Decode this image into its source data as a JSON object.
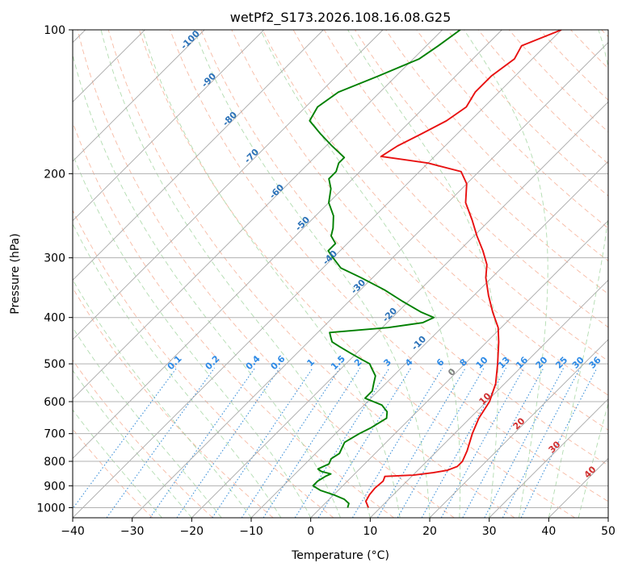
{
  "chart_data": {
    "type": "line",
    "diagram": "skew-t log-p",
    "title": "wetPf2_S173.2026.108.16.08.G25",
    "xlabel": "Temperature (°C)",
    "ylabel": "Pressure (hPa)",
    "xlim": [
      -40,
      50
    ],
    "ylim": [
      1050,
      100
    ],
    "y_scale": "log",
    "x_ticks": [
      "−40",
      "−30",
      "−20",
      "−10",
      "0",
      "10",
      "20",
      "30",
      "40",
      "50"
    ],
    "x_tick_values": [
      -40,
      -30,
      -20,
      -10,
      0,
      10,
      20,
      30,
      40,
      50
    ],
    "y_ticks": [
      "1000",
      "900",
      "800",
      "700",
      "600",
      "500",
      "400",
      "300",
      "200",
      "100"
    ],
    "y_tick_values": [
      1000,
      900,
      800,
      700,
      600,
      500,
      400,
      300,
      200,
      100
    ],
    "grid": true,
    "dry_adiabat_labels": [
      "-100",
      "-90",
      "-80",
      "-70",
      "-60",
      "-50",
      "-40",
      "-30",
      "-20",
      "-10"
    ],
    "moist_adiabat_labels": [
      "0",
      "10",
      "20",
      "30",
      "40"
    ],
    "mixing_ratio_labels": [
      "0.1",
      "0.2",
      "0.4",
      "0.6",
      "1",
      "1.5",
      "2",
      "3",
      "4",
      "6",
      "8",
      "10",
      "13",
      "16",
      "20",
      "25",
      "30",
      "36"
    ],
    "series": [
      {
        "color": "#e81010",
        "p": [
          1000,
          970,
          940,
          910,
          880,
          860,
          855,
          845,
          835,
          820,
          800,
          760,
          700,
          650,
          600,
          550,
          500,
          450,
          420,
          390,
          360,
          330,
          310,
          290,
          270,
          250,
          230,
          210,
          198,
          190,
          184,
          175,
          165,
          155,
          145,
          135,
          125,
          115,
          108,
          100
        ],
        "t": [
          8,
          6.5,
          6,
          5.8,
          6,
          5.5,
          10,
          13,
          15,
          16,
          16,
          15,
          13,
          11.5,
          10.5,
          8.5,
          5.5,
          2,
          -0.5,
          -4,
          -7.5,
          -11,
          -13,
          -16,
          -19.5,
          -23,
          -27,
          -30,
          -33,
          -40,
          -49,
          -48,
          -46,
          -44,
          -43,
          -44,
          -44,
          -43,
          -44,
          -40
        ]
      },
      {
        "color": "#008000",
        "p": [
          1000,
          980,
          960,
          940,
          920,
          900,
          880,
          860,
          850,
          840,
          835,
          830,
          820,
          810,
          790,
          770,
          750,
          730,
          700,
          680,
          650,
          630,
          610,
          600,
          590,
          570,
          550,
          530,
          510,
          500,
          490,
          475,
          460,
          450,
          440,
          430,
          420,
          410,
          400,
          390,
          370,
          350,
          330,
          315,
          300,
          290,
          280,
          270,
          260,
          245,
          230,
          215,
          205,
          198,
          190,
          185,
          175,
          165,
          155,
          145,
          135,
          125,
          115,
          108,
          100
        ],
        "t": [
          4.5,
          4,
          2.5,
          0,
          -3,
          -5,
          -5,
          -4.5,
          -4,
          -6,
          -6.5,
          -7,
          -6.5,
          -6,
          -6.5,
          -6,
          -6.5,
          -7,
          -6,
          -5,
          -4,
          -5,
          -7,
          -9,
          -11,
          -11,
          -12,
          -13,
          -15,
          -16,
          -18,
          -21,
          -24,
          -26,
          -27,
          -28,
          -19,
          -14,
          -13,
          -16,
          -21,
          -26,
          -32,
          -37,
          -40,
          -42,
          -42,
          -44,
          -45,
          -47,
          -50,
          -52,
          -54,
          -54,
          -55,
          -55,
          -59,
          -63,
          -67,
          -68,
          -67,
          -63,
          -59,
          -58,
          -57
        ]
      }
    ]
  }
}
